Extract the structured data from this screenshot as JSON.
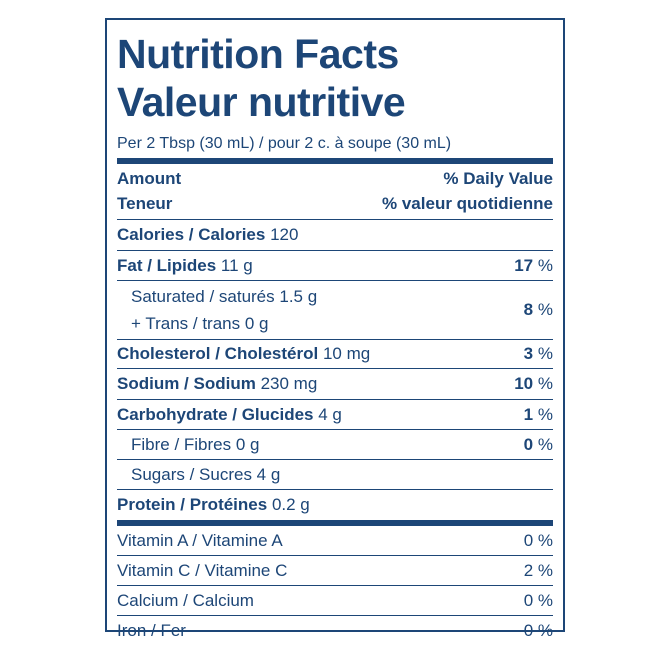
{
  "header": {
    "title": "Nutrition Facts",
    "title_fr": "Valeur nutritive",
    "serving": "Per 2 Tbsp (30 mL) / pour 2 c. à soupe (30 mL)"
  },
  "columns": {
    "amount": "Amount",
    "amount_fr": "Teneur",
    "dv": "% Daily Value",
    "dv_fr": "% valeur quotidienne"
  },
  "rows": [
    {
      "name": "Calories / Calories",
      "amount": "120"
    },
    {
      "name": "Fat / Lipides",
      "amount": "11 g",
      "dv": "17",
      "pct": "%"
    },
    {
      "lines": [
        "Saturated / saturés 1.5 g",
        "+ Trans / trans 0 g"
      ],
      "dv": "8",
      "pct": "%"
    },
    {
      "name": "Cholesterol / Cholestérol",
      "amount": "10 mg",
      "dv": "3",
      "pct": "%"
    },
    {
      "name": "Sodium / Sodium",
      "amount": "230 mg",
      "dv": "10",
      "pct": "%"
    },
    {
      "name": "Carbohydrate / Glucides",
      "amount": "4 g",
      "dv": "1",
      "pct": "%"
    },
    {
      "lines": [
        "Fibre / Fibres 0 g"
      ],
      "dv": "0",
      "pct": "%"
    },
    {
      "lines": [
        "Sugars / Sucres 4 g"
      ]
    },
    {
      "name": "Protein / Protéines",
      "amount": "0.2 g"
    }
  ],
  "vitamins": [
    {
      "name": "Vitamin A / Vitamine A",
      "dv": "0 %"
    },
    {
      "name": "Vitamin C / Vitamine C",
      "dv": "2 %"
    },
    {
      "name": "Calcium / Calcium",
      "dv": "0 %"
    },
    {
      "name": "Iron / Fer",
      "dv": "0 %"
    }
  ]
}
